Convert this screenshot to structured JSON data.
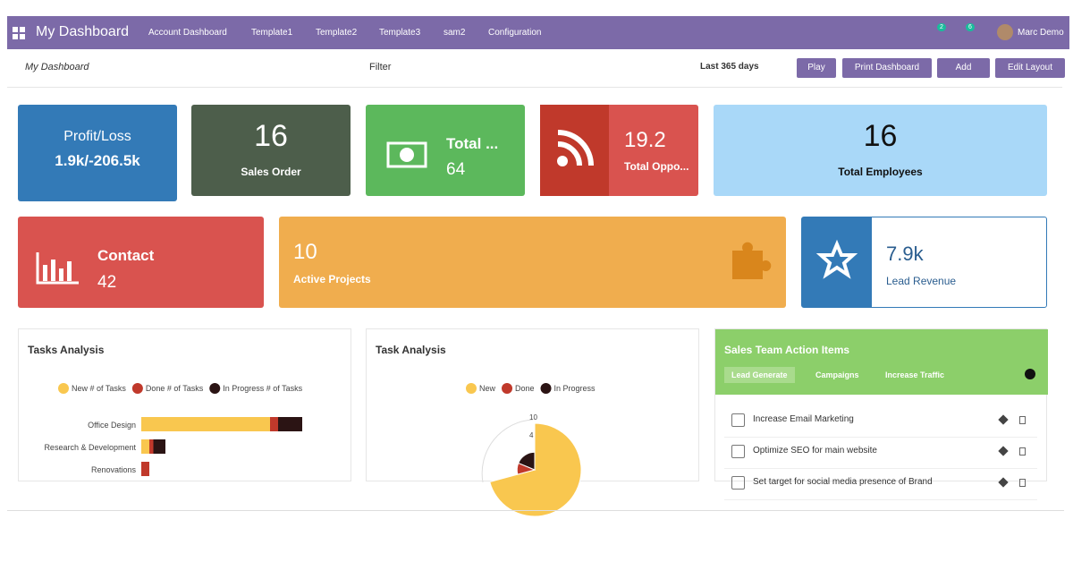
{
  "navbar": {
    "title": "My Dashboard",
    "menu": [
      "Account Dashboard",
      "Template1",
      "Template2",
      "Template3",
      "sam2",
      "Configuration"
    ],
    "badges": [
      "2",
      "6"
    ],
    "user": "Marc Demo"
  },
  "toolbar": {
    "dashboard": "My Dashboard",
    "filter": "Filter",
    "period": "Last 365 days",
    "buttons": [
      "Play",
      "Print Dashboard",
      "Add",
      "Edit Layout"
    ]
  },
  "tiles": [
    {
      "value": "1.9k/-206.5k",
      "label": "Profit/Loss"
    },
    {
      "value": "16",
      "label": "Sales Order"
    },
    {
      "value": "64",
      "label": "Total ..."
    },
    {
      "value": "19.2",
      "label": "Total Oppo..."
    },
    {
      "value": "16",
      "label": "Total Employees"
    },
    {
      "value": "42",
      "label": "Contact"
    },
    {
      "value": "10",
      "label": "Active Projects"
    },
    {
      "value": "7.9k",
      "label": "Lead Revenue"
    }
  ],
  "tasks_analysis": {
    "title": "Tasks Analysis",
    "categories": [
      "Office Design",
      "Research & Development",
      "Renovations"
    ],
    "series": [
      {
        "name": "New # of Tasks",
        "color": "#f9c74f",
        "values": [
          16,
          1,
          0
        ]
      },
      {
        "name": "Done # of Tasks",
        "color": "#c0392b",
        "values": [
          1,
          0.5,
          1
        ]
      },
      {
        "name": "In Progress # of Tasks",
        "color": "#2b1414",
        "values": [
          3,
          1.5,
          0
        ]
      }
    ]
  },
  "task_analysis": {
    "title": "Task Analysis",
    "labels": [
      "New",
      "Done",
      "In Progress"
    ],
    "colors": [
      "#f9c74f",
      "#c0392b",
      "#2b1414"
    ],
    "values": [
      17,
      2.5,
      4.5
    ],
    "gauge_ticks": [
      "10",
      "4"
    ]
  },
  "sales_team": {
    "title": "Sales Team Action Items",
    "tabs": [
      "Lead Generate",
      "Campaigns",
      "Increase Traffic"
    ],
    "items": [
      "Increase Email Marketing",
      "Optimize SEO for main website",
      "Set target for social media presence of Brand"
    ]
  }
}
